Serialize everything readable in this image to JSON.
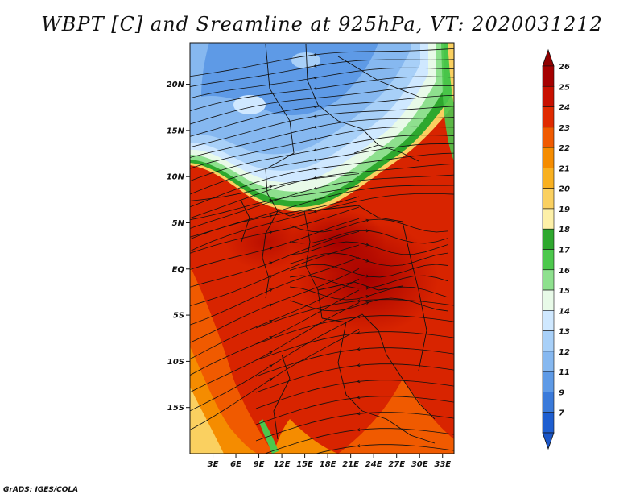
{
  "title": "WBPT [C] and Sreamline at 925hPa, VT: 2020031212",
  "footer": "GrADS: IGES/COLA",
  "map": {
    "lat_range": [
      -20,
      24.5
    ],
    "lon_range": [
      0,
      34.5
    ],
    "lat_ticks": [
      {
        "value": 20,
        "label": "20N"
      },
      {
        "value": 15,
        "label": "15N"
      },
      {
        "value": 10,
        "label": "10N"
      },
      {
        "value": 5,
        "label": "5N"
      },
      {
        "value": 0,
        "label": "EQ"
      },
      {
        "value": -5,
        "label": "5S"
      },
      {
        "value": -10,
        "label": "10S"
      },
      {
        "value": -15,
        "label": "15S"
      }
    ],
    "lon_ticks": [
      {
        "value": 3,
        "label": "3E"
      },
      {
        "value": 6,
        "label": "6E"
      },
      {
        "value": 9,
        "label": "9E"
      },
      {
        "value": 12,
        "label": "12E"
      },
      {
        "value": 15,
        "label": "15E"
      },
      {
        "value": 18,
        "label": "18E"
      },
      {
        "value": 21,
        "label": "21E"
      },
      {
        "value": 24,
        "label": "24E"
      },
      {
        "value": 27,
        "label": "27E"
      },
      {
        "value": 30,
        "label": "30E"
      },
      {
        "value": 33,
        "label": "33E"
      }
    ]
  },
  "colorbar": {
    "levels": [
      {
        "label": "26",
        "color": "#a50000"
      },
      {
        "label": "25",
        "color": "#c81000"
      },
      {
        "label": "24",
        "color": "#e02a00"
      },
      {
        "label": "23",
        "color": "#f05a00"
      },
      {
        "label": "22",
        "color": "#f58c00"
      },
      {
        "label": "21",
        "color": "#f8b020"
      },
      {
        "label": "20",
        "color": "#fad060"
      },
      {
        "label": "19",
        "color": "#fdf0a8"
      },
      {
        "label": "18",
        "color": "#2ea82e"
      },
      {
        "label": "17",
        "color": "#4cc84c"
      },
      {
        "label": "16",
        "color": "#8ee08e"
      },
      {
        "label": "15",
        "color": "#e8fae8"
      },
      {
        "label": "14",
        "color": "#cfe8ff"
      },
      {
        "label": "13",
        "color": "#a8d0f8"
      },
      {
        "label": "12",
        "color": "#86b8f0"
      },
      {
        "label": "11",
        "color": "#5e9ae6"
      },
      {
        "label": "9",
        "color": "#3a7ada"
      },
      {
        "label": "7",
        "color": "#1e5ed0"
      }
    ],
    "top_color": "#900000",
    "bottom_color": "#1a56c8"
  }
}
